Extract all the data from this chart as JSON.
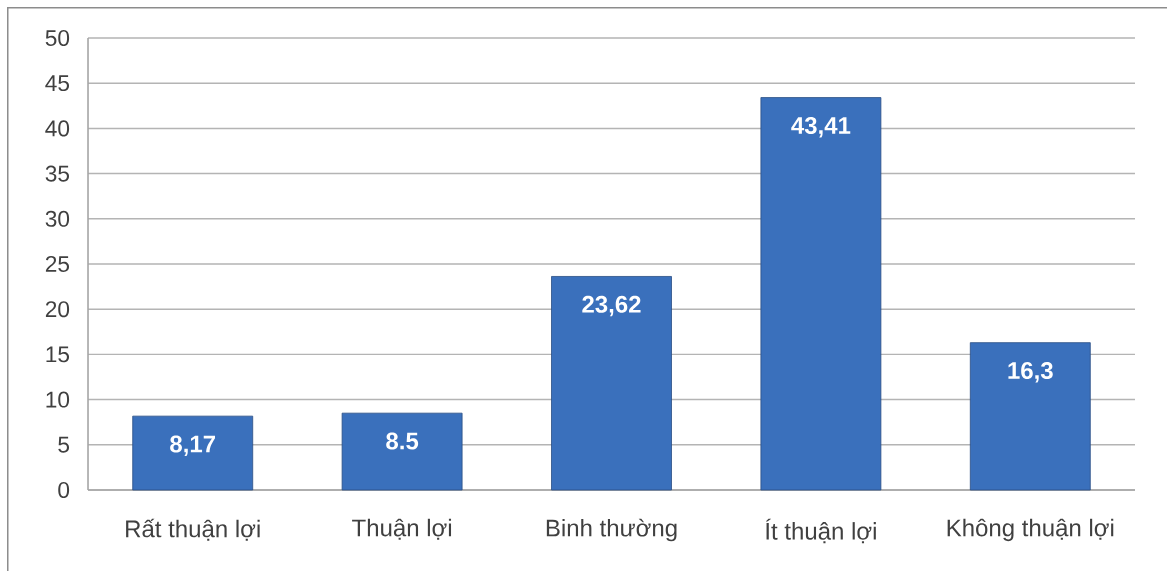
{
  "chart_data": {
    "type": "bar",
    "categories": [
      "Rất thuận lợi",
      "Thuận lợi",
      "Binh thường",
      "Ít thuận lợi",
      "Không thuận lợi"
    ],
    "values": [
      8.17,
      8.5,
      23.62,
      43.41,
      16.3
    ],
    "value_labels": [
      "8,17",
      "8.5",
      "23,62",
      "43,41",
      "16,3"
    ],
    "color": "#3a70bc",
    "ylim": [
      0,
      50
    ],
    "yticks": [
      0,
      5,
      10,
      15,
      20,
      25,
      30,
      35,
      40,
      45,
      50
    ],
    "grid": "y"
  }
}
